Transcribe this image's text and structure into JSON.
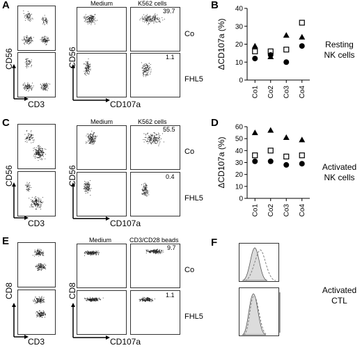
{
  "figure": {
    "panel_letters": [
      "A",
      "B",
      "C",
      "D",
      "E",
      "F"
    ],
    "row_labels": {
      "control": "Co",
      "patient": "FHL5"
    },
    "flow_axes": {
      "cd56": "CD56",
      "cd3": "CD3",
      "cd8": "CD8",
      "cd107a": "CD107a"
    },
    "condition_labels": {
      "medium": "Medium",
      "k562": "K562 cells",
      "beads": "CD3/CD28 beads"
    },
    "gate_values": {
      "a_co": "39.7",
      "a_fhl5": "1.1",
      "c_co": "55.5",
      "c_fhl5": "0.4",
      "e_co": "9.7",
      "e_fhl5": "1.1"
    },
    "side_labels": {
      "b": [
        "Resting",
        "NK cells"
      ],
      "d": [
        "Activated",
        "NK cells"
      ],
      "f": [
        "Activated",
        "CTL"
      ]
    }
  },
  "chart_data": [
    {
      "type": "scatter",
      "panel": "B",
      "ylabel": "ΔCD107a (%)",
      "categories": [
        "Co1",
        "Co2",
        "Co3",
        "Co4"
      ],
      "ylim": [
        0,
        40
      ],
      "yticks": [
        0,
        10,
        20,
        30,
        40
      ],
      "series": [
        {
          "marker": "triangle",
          "values": [
            19,
            13,
            25,
            24
          ]
        },
        {
          "marker": "open-square",
          "values": [
            16,
            16,
            17,
            32
          ]
        },
        {
          "marker": "filled-circle",
          "values": [
            12,
            14,
            10,
            19
          ]
        }
      ]
    },
    {
      "type": "scatter",
      "panel": "D",
      "ylabel": "ΔCD107a (%)",
      "categories": [
        "Co1",
        "Co2",
        "Co3",
        "Co4"
      ],
      "ylim": [
        0,
        60
      ],
      "yticks": [
        0,
        10,
        20,
        30,
        40,
        50,
        60
      ],
      "series": [
        {
          "marker": "triangle",
          "values": [
            55,
            57,
            51,
            49
          ]
        },
        {
          "marker": "open-square",
          "values": [
            36,
            40,
            35,
            36
          ]
        },
        {
          "marker": "filled-circle",
          "values": [
            31,
            31,
            28,
            29
          ]
        }
      ]
    }
  ]
}
